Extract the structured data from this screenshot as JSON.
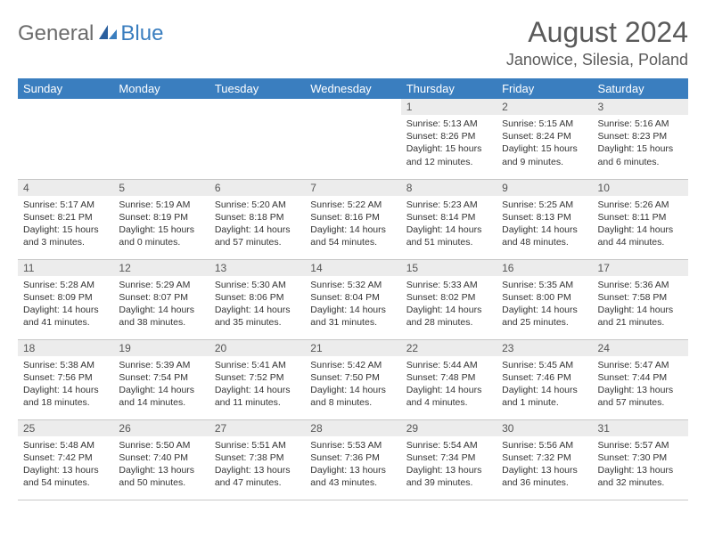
{
  "brand": {
    "general": "General",
    "blue": "Blue"
  },
  "title": "August 2024",
  "location": "Janowice, Silesia, Poland",
  "colors": {
    "header_bg": "#3a7ebf",
    "header_text": "#ffffff",
    "daynum_bg": "#ececec",
    "text": "#333333",
    "logo_gray": "#6b6b6b",
    "logo_blue": "#3a7ebf"
  },
  "weekdays": [
    "Sunday",
    "Monday",
    "Tuesday",
    "Wednesday",
    "Thursday",
    "Friday",
    "Saturday"
  ],
  "first_weekday_index": 4,
  "days": [
    {
      "n": 1,
      "sr": "5:13 AM",
      "ss": "8:26 PM",
      "dl": "15 hours and 12 minutes."
    },
    {
      "n": 2,
      "sr": "5:15 AM",
      "ss": "8:24 PM",
      "dl": "15 hours and 9 minutes."
    },
    {
      "n": 3,
      "sr": "5:16 AM",
      "ss": "8:23 PM",
      "dl": "15 hours and 6 minutes."
    },
    {
      "n": 4,
      "sr": "5:17 AM",
      "ss": "8:21 PM",
      "dl": "15 hours and 3 minutes."
    },
    {
      "n": 5,
      "sr": "5:19 AM",
      "ss": "8:19 PM",
      "dl": "15 hours and 0 minutes."
    },
    {
      "n": 6,
      "sr": "5:20 AM",
      "ss": "8:18 PM",
      "dl": "14 hours and 57 minutes."
    },
    {
      "n": 7,
      "sr": "5:22 AM",
      "ss": "8:16 PM",
      "dl": "14 hours and 54 minutes."
    },
    {
      "n": 8,
      "sr": "5:23 AM",
      "ss": "8:14 PM",
      "dl": "14 hours and 51 minutes."
    },
    {
      "n": 9,
      "sr": "5:25 AM",
      "ss": "8:13 PM",
      "dl": "14 hours and 48 minutes."
    },
    {
      "n": 10,
      "sr": "5:26 AM",
      "ss": "8:11 PM",
      "dl": "14 hours and 44 minutes."
    },
    {
      "n": 11,
      "sr": "5:28 AM",
      "ss": "8:09 PM",
      "dl": "14 hours and 41 minutes."
    },
    {
      "n": 12,
      "sr": "5:29 AM",
      "ss": "8:07 PM",
      "dl": "14 hours and 38 minutes."
    },
    {
      "n": 13,
      "sr": "5:30 AM",
      "ss": "8:06 PM",
      "dl": "14 hours and 35 minutes."
    },
    {
      "n": 14,
      "sr": "5:32 AM",
      "ss": "8:04 PM",
      "dl": "14 hours and 31 minutes."
    },
    {
      "n": 15,
      "sr": "5:33 AM",
      "ss": "8:02 PM",
      "dl": "14 hours and 28 minutes."
    },
    {
      "n": 16,
      "sr": "5:35 AM",
      "ss": "8:00 PM",
      "dl": "14 hours and 25 minutes."
    },
    {
      "n": 17,
      "sr": "5:36 AM",
      "ss": "7:58 PM",
      "dl": "14 hours and 21 minutes."
    },
    {
      "n": 18,
      "sr": "5:38 AM",
      "ss": "7:56 PM",
      "dl": "14 hours and 18 minutes."
    },
    {
      "n": 19,
      "sr": "5:39 AM",
      "ss": "7:54 PM",
      "dl": "14 hours and 14 minutes."
    },
    {
      "n": 20,
      "sr": "5:41 AM",
      "ss": "7:52 PM",
      "dl": "14 hours and 11 minutes."
    },
    {
      "n": 21,
      "sr": "5:42 AM",
      "ss": "7:50 PM",
      "dl": "14 hours and 8 minutes."
    },
    {
      "n": 22,
      "sr": "5:44 AM",
      "ss": "7:48 PM",
      "dl": "14 hours and 4 minutes."
    },
    {
      "n": 23,
      "sr": "5:45 AM",
      "ss": "7:46 PM",
      "dl": "14 hours and 1 minute."
    },
    {
      "n": 24,
      "sr": "5:47 AM",
      "ss": "7:44 PM",
      "dl": "13 hours and 57 minutes."
    },
    {
      "n": 25,
      "sr": "5:48 AM",
      "ss": "7:42 PM",
      "dl": "13 hours and 54 minutes."
    },
    {
      "n": 26,
      "sr": "5:50 AM",
      "ss": "7:40 PM",
      "dl": "13 hours and 50 minutes."
    },
    {
      "n": 27,
      "sr": "5:51 AM",
      "ss": "7:38 PM",
      "dl": "13 hours and 47 minutes."
    },
    {
      "n": 28,
      "sr": "5:53 AM",
      "ss": "7:36 PM",
      "dl": "13 hours and 43 minutes."
    },
    {
      "n": 29,
      "sr": "5:54 AM",
      "ss": "7:34 PM",
      "dl": "13 hours and 39 minutes."
    },
    {
      "n": 30,
      "sr": "5:56 AM",
      "ss": "7:32 PM",
      "dl": "13 hours and 36 minutes."
    },
    {
      "n": 31,
      "sr": "5:57 AM",
      "ss": "7:30 PM",
      "dl": "13 hours and 32 minutes."
    }
  ],
  "labels": {
    "sunrise": "Sunrise:",
    "sunset": "Sunset:",
    "daylight": "Daylight:"
  }
}
